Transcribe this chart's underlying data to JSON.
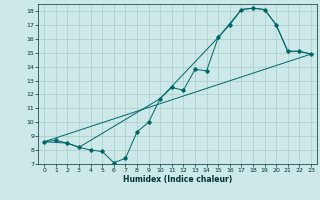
{
  "xlabel": "Humidex (Indice chaleur)",
  "background_color": "#cce8e8",
  "grid_color": "#aacccc",
  "line_color": "#006666",
  "xlim": [
    -0.5,
    23.5
  ],
  "ylim": [
    7,
    18.5
  ],
  "xticks": [
    0,
    1,
    2,
    3,
    4,
    5,
    6,
    7,
    8,
    9,
    10,
    11,
    12,
    13,
    14,
    15,
    16,
    17,
    18,
    19,
    20,
    21,
    22,
    23
  ],
  "yticks": [
    7,
    8,
    9,
    10,
    11,
    12,
    13,
    14,
    15,
    16,
    17,
    18
  ],
  "line1_x": [
    0,
    1,
    2,
    3,
    4,
    5,
    6,
    7,
    8,
    9,
    10,
    11,
    12,
    13,
    14,
    15,
    16,
    17,
    18,
    19,
    20,
    21,
    22,
    23
  ],
  "line1_y": [
    8.6,
    8.7,
    8.5,
    8.2,
    8.0,
    7.9,
    7.1,
    7.4,
    9.3,
    10.0,
    11.7,
    12.5,
    12.3,
    13.8,
    13.7,
    16.1,
    17.0,
    18.1,
    18.2,
    18.1,
    17.0,
    15.1,
    15.1,
    14.9
  ],
  "line2_x": [
    0,
    2,
    3,
    10,
    15,
    17,
    18,
    19,
    20,
    21,
    22,
    23
  ],
  "line2_y": [
    8.6,
    8.5,
    8.2,
    11.7,
    16.1,
    18.1,
    18.2,
    18.1,
    17.0,
    15.1,
    15.1,
    14.9
  ],
  "line3_x": [
    0,
    23
  ],
  "line3_y": [
    8.6,
    14.9
  ]
}
